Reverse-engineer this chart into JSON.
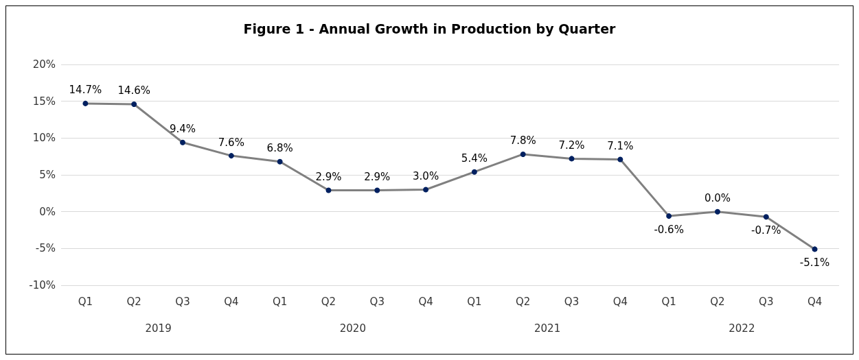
{
  "chart_data": {
    "type": "line",
    "title": "Figure 1 - Annual Growth in Production by Quarter",
    "categories": [
      "Q1",
      "Q2",
      "Q3",
      "Q4",
      "Q1",
      "Q2",
      "Q3",
      "Q4",
      "Q1",
      "Q2",
      "Q3",
      "Q4",
      "Q1",
      "Q2",
      "Q3",
      "Q4"
    ],
    "annotations": [
      "2019",
      "2020",
      "2021",
      "2022"
    ],
    "series": [
      {
        "color": "#808080",
        "values": [
          14.7,
          14.6,
          9.4,
          7.6,
          6.8,
          2.9,
          2.9,
          3.0,
          5.4,
          7.8,
          7.2,
          7.1,
          -0.6,
          0.0,
          -0.7,
          -5.1
        ],
        "value_labels": [
          "14.7%",
          "14.6%",
          "9.4%",
          "7.6%",
          "6.8%",
          "2.9%",
          "2.9%",
          "3.0%",
          "5.4%",
          "7.8%",
          "7.2%",
          "7.1%",
          "-0.6%",
          "0.0%",
          "-0.7%",
          "-5.1%"
        ]
      }
    ],
    "ylim": [
      -10,
      20
    ],
    "yticks": [
      {
        "value": -10,
        "label": "-10%"
      },
      {
        "value": -5,
        "label": "-5%"
      },
      {
        "value": 0,
        "label": "0%"
      },
      {
        "value": 5,
        "label": "5%"
      },
      {
        "value": 10,
        "label": "10%"
      },
      {
        "value": 15,
        "label": "15%"
      },
      {
        "value": 20,
        "label": "20%"
      }
    ],
    "grid": "y",
    "marker": "circle",
    "line_style": "solid"
  }
}
